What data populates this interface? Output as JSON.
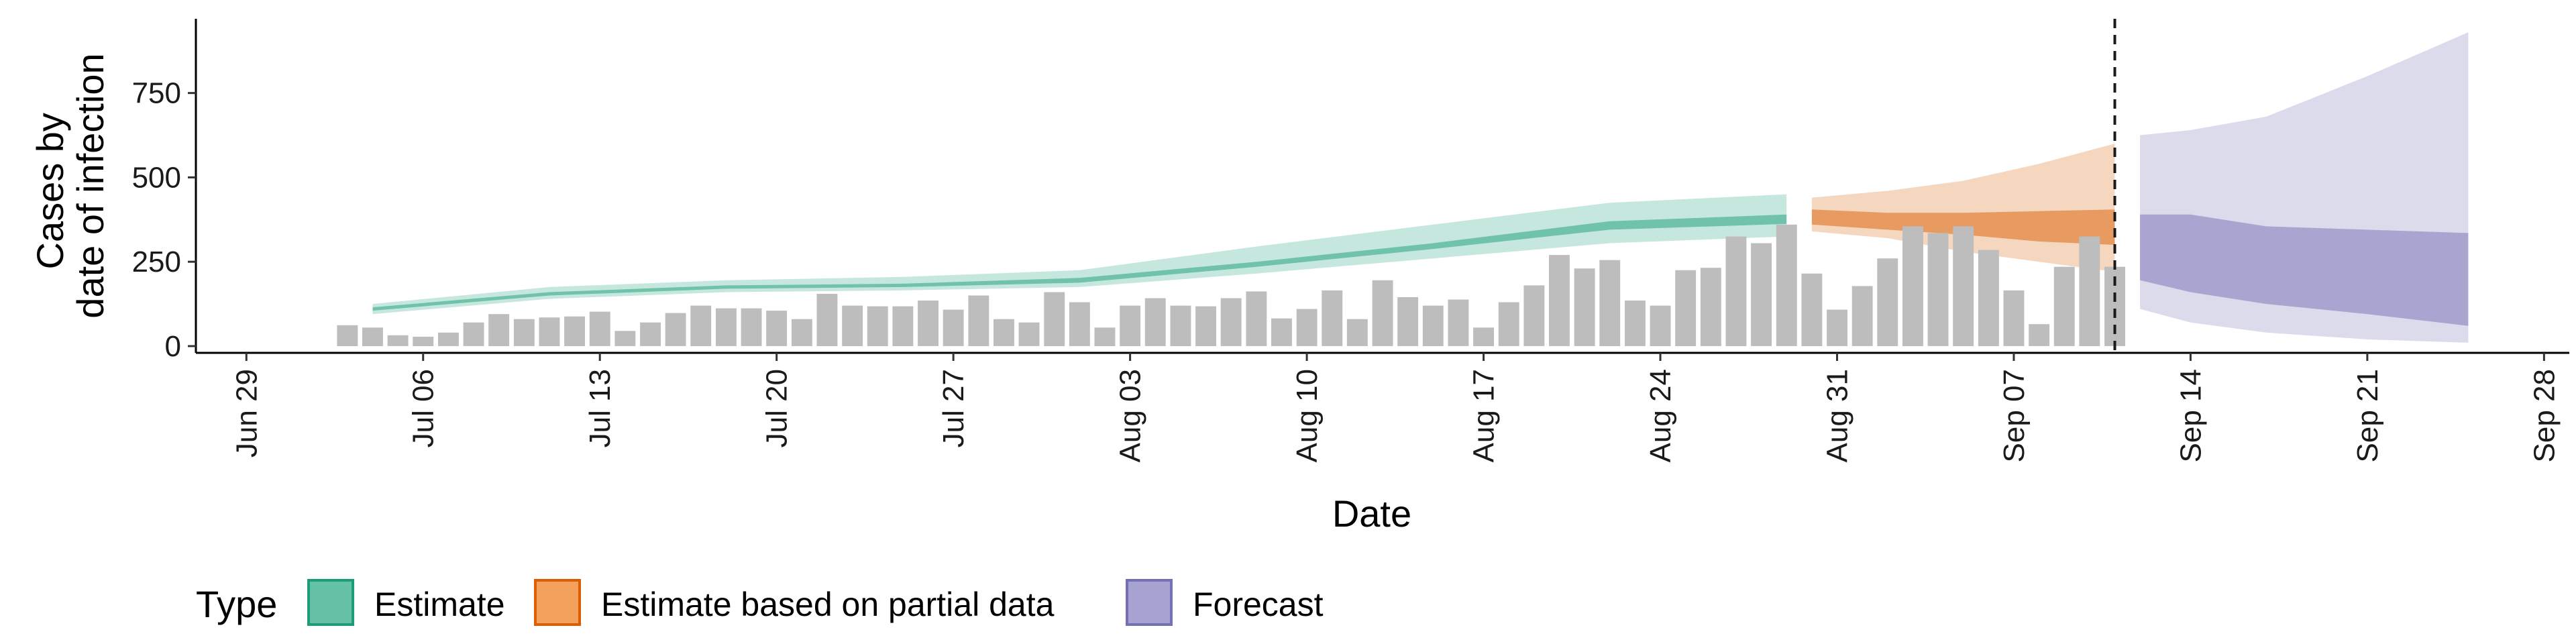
{
  "chart_data": {
    "type": "bar",
    "xlabel": "Date",
    "ylabel_lines": [
      "Cases by",
      "date of infection"
    ],
    "ylim": [
      -20,
      970
    ],
    "y_ticks": [
      0,
      250,
      500,
      750
    ],
    "y_tick_labels": [
      "0",
      "250",
      "500",
      "750"
    ],
    "xlim": [
      "2020-06-27",
      "2020-09-29"
    ],
    "x_ticks": [
      "2020-06-29",
      "2020-07-06",
      "2020-07-13",
      "2020-07-20",
      "2020-07-27",
      "2020-08-03",
      "2020-08-10",
      "2020-08-17",
      "2020-08-24",
      "2020-08-31",
      "2020-09-07",
      "2020-09-14",
      "2020-09-21",
      "2020-09-28"
    ],
    "x_tick_labels": [
      "Jun 29",
      "Jul 06",
      "Jul 13",
      "Jul 20",
      "Jul 27",
      "Aug 03",
      "Aug 10",
      "Aug 17",
      "Aug 24",
      "Aug 31",
      "Sep 07",
      "Sep 14",
      "Sep 21",
      "Sep 28"
    ],
    "vline_date": "2020-09-11",
    "grid": false,
    "legend_position": "bottom",
    "legend_title": "Type",
    "legend": [
      {
        "label": "Estimate",
        "fill": "#66c2a5",
        "stroke": "#1b9e77"
      },
      {
        "label": "Estimate based on partial data",
        "fill": "#f4a15d",
        "stroke": "#d95f02"
      },
      {
        "label": "Forecast",
        "fill": "#a7a3d1",
        "stroke": "#7570b3"
      }
    ],
    "bar_color": "#bdbdbd",
    "bars": {
      "start_date": "2020-07-03",
      "values": [
        62,
        55,
        32,
        28,
        40,
        70,
        95,
        80,
        85,
        88,
        102,
        45,
        70,
        98,
        120,
        112,
        112,
        105,
        80,
        155,
        120,
        118,
        118,
        135,
        108,
        150,
        80,
        70,
        160,
        130,
        55,
        120,
        142,
        120,
        118,
        142,
        162,
        82,
        110,
        165,
        80,
        195,
        145,
        120,
        138,
        55,
        130,
        180,
        270,
        230,
        255,
        135,
        120,
        225,
        232,
        325,
        305,
        360,
        215,
        108,
        178,
        260,
        355,
        335,
        355,
        285,
        165,
        65,
        235,
        325,
        235
      ]
    },
    "series": [
      {
        "name": "Estimate",
        "color": "#1b9e77",
        "dates": [
          "2020-07-04",
          "2020-07-11",
          "2020-07-18",
          "2020-07-25",
          "2020-08-01",
          "2020-08-08",
          "2020-08-15",
          "2020-08-22",
          "2020-08-29"
        ],
        "outer_low": [
          95,
          140,
          160,
          165,
          175,
          215,
          260,
          305,
          325
        ],
        "outer_high": [
          125,
          175,
          195,
          205,
          225,
          295,
          360,
          425,
          450
        ],
        "inner_low": [
          105,
          150,
          170,
          175,
          188,
          235,
          288,
          345,
          362
        ],
        "inner_high": [
          115,
          160,
          180,
          185,
          202,
          250,
          305,
          370,
          390
        ]
      },
      {
        "name": "Estimate based on partial data",
        "color": "#d95f02",
        "dates": [
          "2020-08-30",
          "2020-09-02",
          "2020-09-05",
          "2020-09-08",
          "2020-09-11"
        ],
        "outer_low": [
          340,
          320,
          280,
          250,
          220
        ],
        "outer_high": [
          440,
          460,
          490,
          540,
          600
        ],
        "inner_low": [
          360,
          345,
          330,
          310,
          300
        ],
        "inner_high": [
          405,
          395,
          395,
          400,
          405
        ]
      },
      {
        "name": "Forecast",
        "color": "#7570b3",
        "dates": [
          "2020-09-12",
          "2020-09-14",
          "2020-09-17",
          "2020-09-21",
          "2020-09-25"
        ],
        "outer_low": [
          110,
          70,
          40,
          20,
          10
        ],
        "outer_high": [
          625,
          640,
          680,
          800,
          930
        ],
        "inner_low": [
          195,
          160,
          125,
          95,
          60
        ],
        "inner_high": [
          390,
          390,
          355,
          345,
          335
        ]
      }
    ]
  }
}
